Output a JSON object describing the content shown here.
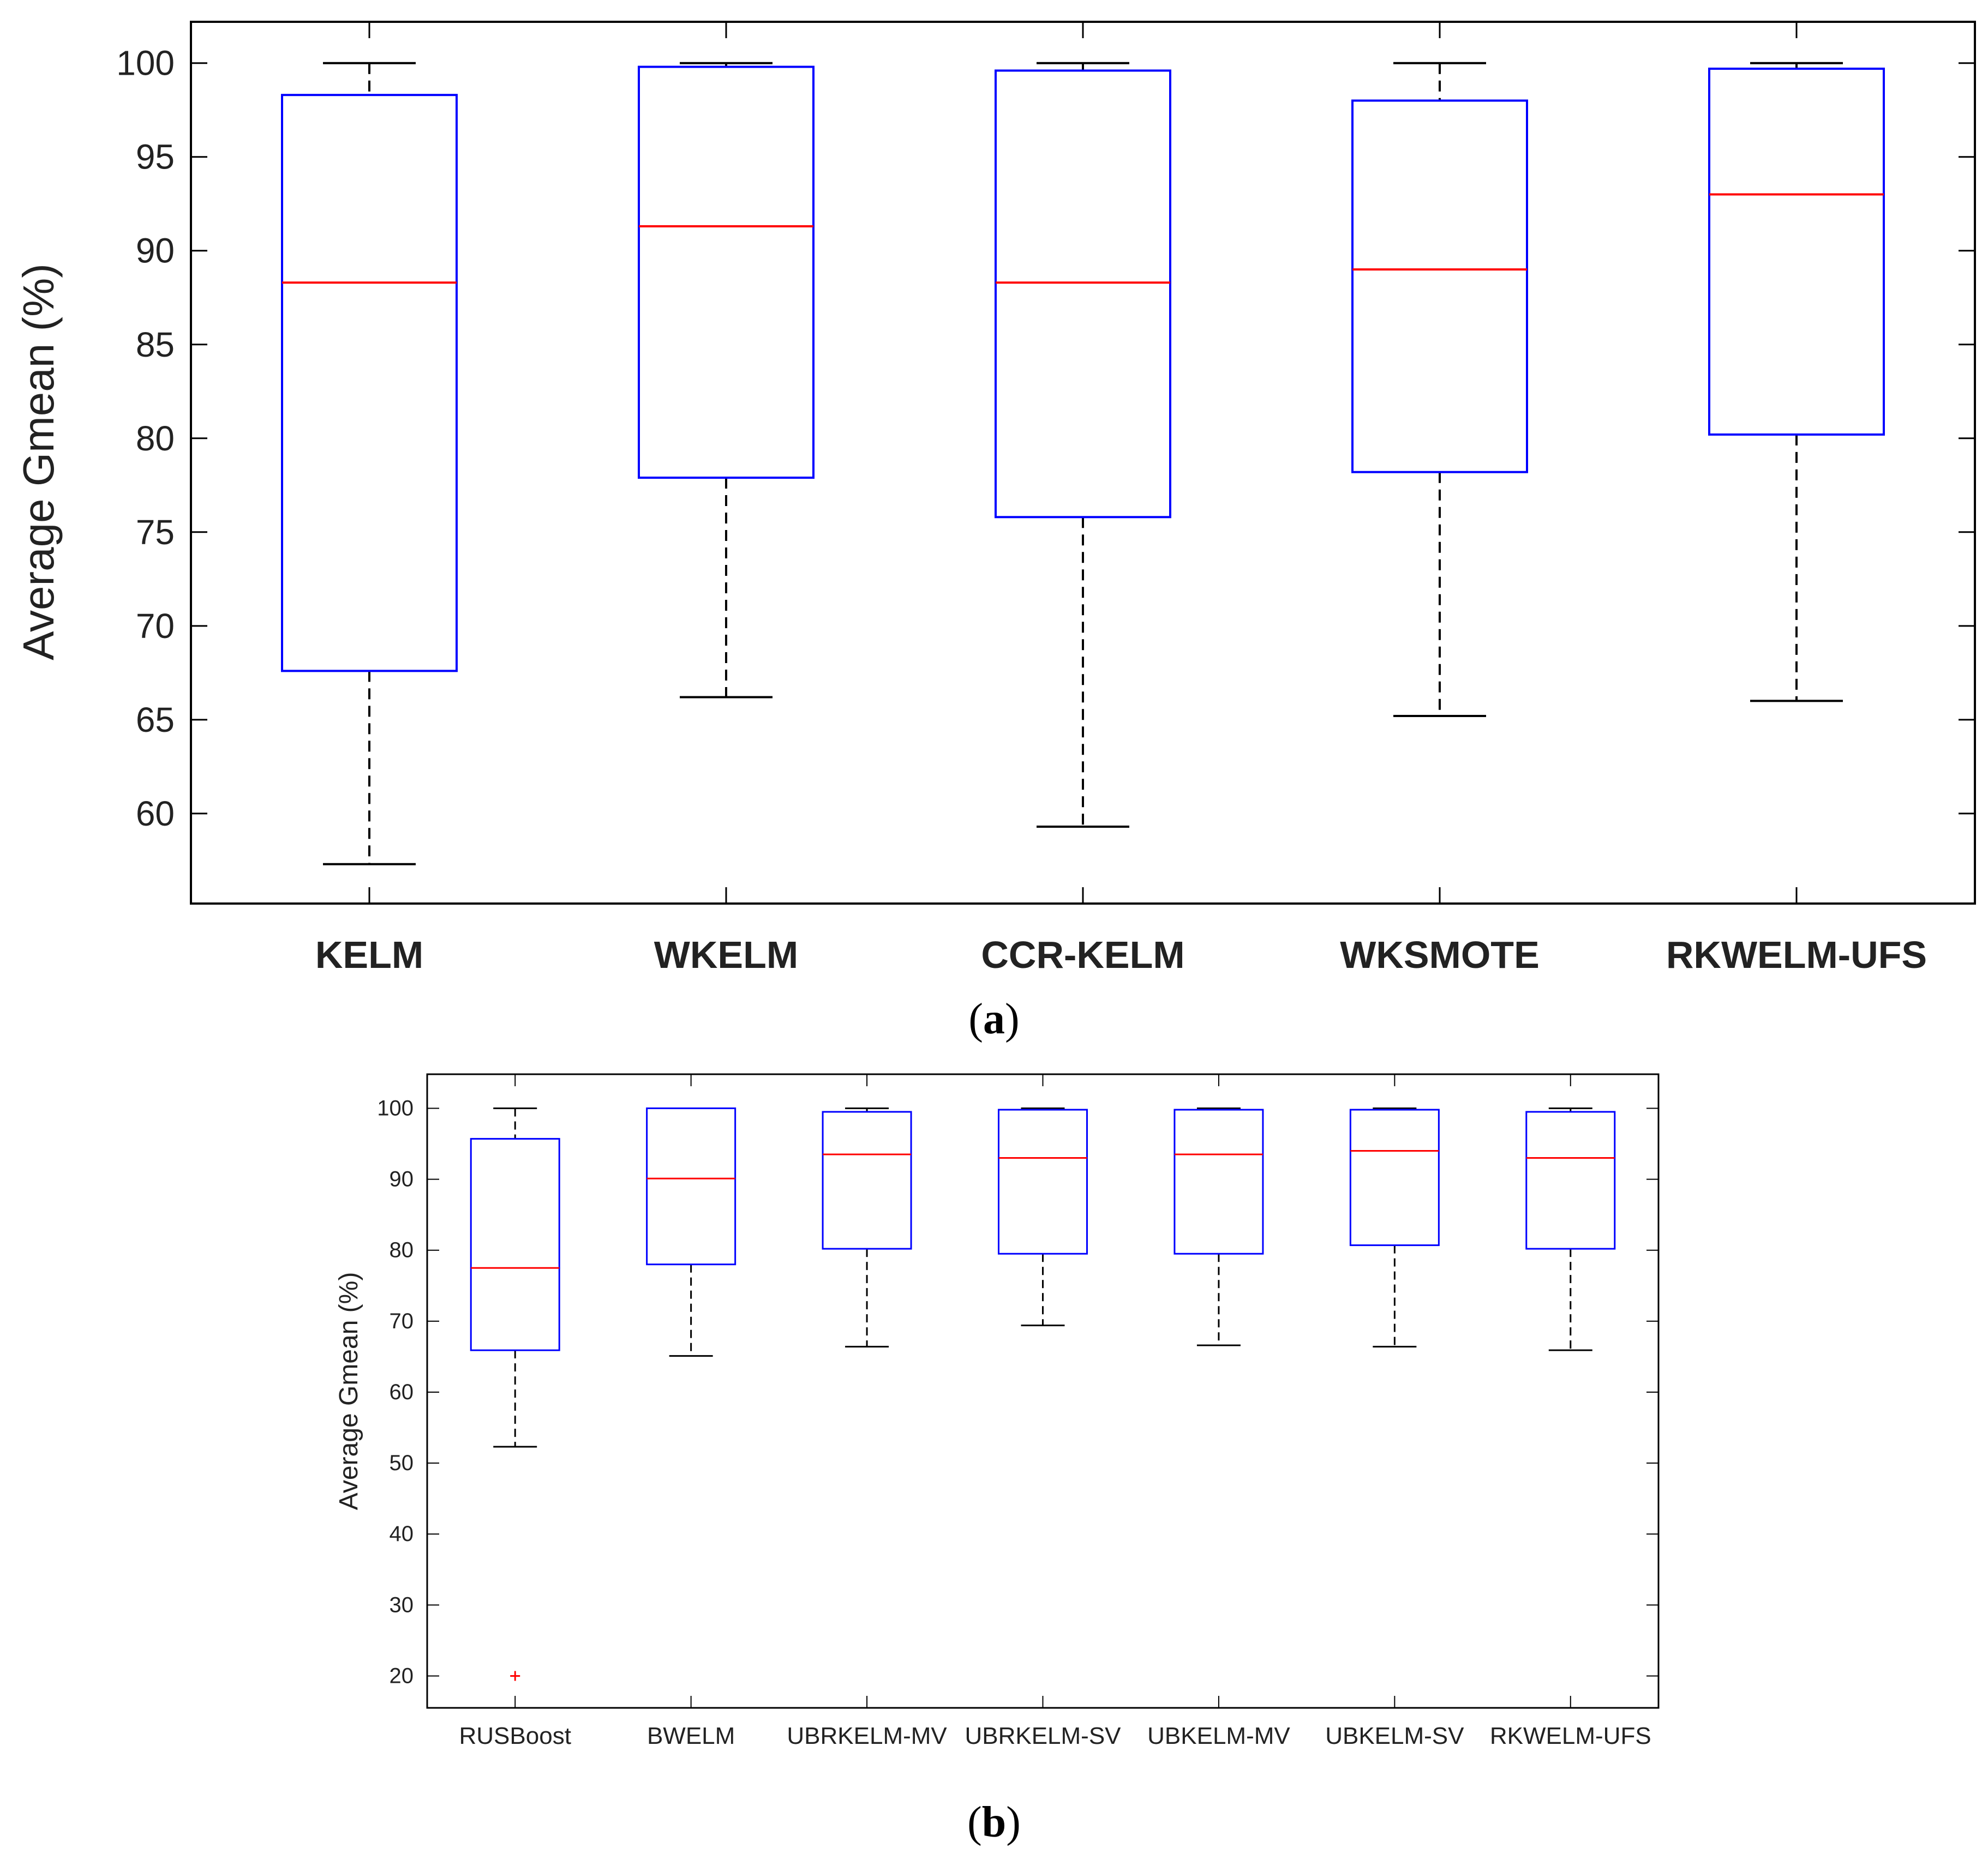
{
  "chart_data": [
    {
      "type": "boxplot",
      "panel": "a",
      "ylabel": "Average Gmean (%)",
      "ylim": [
        55.2,
        102.2
      ],
      "yticks": [
        60,
        65,
        70,
        75,
        80,
        85,
        90,
        95,
        100
      ],
      "categories": [
        "KELM",
        "WKELM",
        "CCR-KELM",
        "WKSMOTE",
        "RKWELM-UFS"
      ],
      "boxes": [
        {
          "label": "KELM",
          "whisker_low": 57.3,
          "q1": 67.6,
          "median": 88.3,
          "q3": 98.3,
          "whisker_high": 100
        },
        {
          "label": "WKELM",
          "whisker_low": 66.2,
          "q1": 77.9,
          "median": 91.3,
          "q3": 99.8,
          "whisker_high": 100
        },
        {
          "label": "CCR-KELM",
          "whisker_low": 59.3,
          "q1": 75.8,
          "median": 88.3,
          "q3": 99.6,
          "whisker_high": 100
        },
        {
          "label": "WKSMOTE",
          "whisker_low": 65.2,
          "q1": 78.2,
          "median": 89.0,
          "q3": 98.0,
          "whisker_high": 100
        },
        {
          "label": "RKWELM-UFS",
          "whisker_low": 66.0,
          "q1": 80.2,
          "median": 93.0,
          "q3": 99.7,
          "whisker_high": 100
        }
      ],
      "outliers": []
    },
    {
      "type": "boxplot",
      "panel": "b",
      "ylabel": "Average Gmean (%)",
      "ylim": [
        15.5,
        104.8
      ],
      "yticks": [
        20,
        30,
        40,
        50,
        60,
        70,
        80,
        90,
        100
      ],
      "categories": [
        "RUSBoost",
        "BWELM",
        "UBRKELM-MV",
        "UBRKELM-SV",
        "UBKELM-MV",
        "UBKELM-SV",
        "RKWELM-UFS"
      ],
      "boxes": [
        {
          "label": "RUSBoost",
          "whisker_low": 52.3,
          "q1": 65.9,
          "median": 77.5,
          "q3": 95.7,
          "whisker_high": 100
        },
        {
          "label": "BWELM",
          "whisker_low": 65.1,
          "q1": 78.0,
          "median": 90.1,
          "q3": 100,
          "whisker_high": 100
        },
        {
          "label": "UBRKELM-MV",
          "whisker_low": 66.4,
          "q1": 80.2,
          "median": 93.5,
          "q3": 99.5,
          "whisker_high": 100
        },
        {
          "label": "UBRKELM-SV",
          "whisker_low": 69.4,
          "q1": 79.5,
          "median": 93.0,
          "q3": 99.8,
          "whisker_high": 100
        },
        {
          "label": "UBKELM-MV",
          "whisker_low": 66.6,
          "q1": 79.5,
          "median": 93.5,
          "q3": 99.8,
          "whisker_high": 100
        },
        {
          "label": "UBKELM-SV",
          "whisker_low": 66.4,
          "q1": 80.7,
          "median": 94.0,
          "q3": 99.8,
          "whisker_high": 100
        },
        {
          "label": "RKWELM-UFS",
          "whisker_low": 65.9,
          "q1": 80.2,
          "median": 93.0,
          "q3": 99.5,
          "whisker_high": 100
        }
      ],
      "outliers": [
        {
          "label": "RUSBoost",
          "value": 20
        }
      ]
    }
  ],
  "captions": {
    "a": "a",
    "b": "b"
  },
  "colors": {
    "box": "#0000ff",
    "median": "#ff0000",
    "whisker": "#000000",
    "outlier": "#ff0000"
  }
}
